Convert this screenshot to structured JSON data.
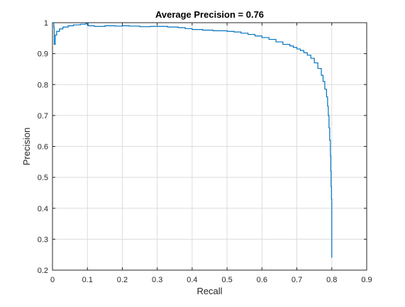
{
  "chart_data": {
    "type": "line",
    "title": "Average Precision = 0.76",
    "xlabel": "Recall",
    "ylabel": "Precision",
    "xlim": [
      0,
      0.9
    ],
    "ylim": [
      0.2,
      1
    ],
    "grid": true,
    "x_ticks": [
      0,
      0.1,
      0.2,
      0.3,
      0.4,
      0.5,
      0.6,
      0.7,
      0.8,
      0.9
    ],
    "x_tick_labels": [
      "0",
      "0.1",
      "0.2",
      "0.3",
      "0.4",
      "0.5",
      "0.6",
      "0.7",
      "0.8",
      "0.9"
    ],
    "y_ticks": [
      0.2,
      0.3,
      0.4,
      0.5,
      0.6,
      0.7,
      0.8,
      0.9,
      1
    ],
    "y_tick_labels": [
      "0.2",
      "0.3",
      "0.4",
      "0.5",
      "0.6",
      "0.7",
      "0.8",
      "0.9",
      "1"
    ],
    "series": [
      {
        "color": "#0072BD",
        "step": true,
        "points": [
          [
            0.0,
            1.0
          ],
          [
            0.002,
            1.0
          ],
          [
            0.004,
            0.985
          ],
          [
            0.005,
            0.93
          ],
          [
            0.008,
            0.96
          ],
          [
            0.012,
            0.972
          ],
          [
            0.02,
            0.98
          ],
          [
            0.03,
            0.986
          ],
          [
            0.045,
            0.99
          ],
          [
            0.06,
            0.993
          ],
          [
            0.08,
            0.995
          ],
          [
            0.095,
            0.997
          ],
          [
            0.1,
            0.998
          ],
          [
            0.102,
            0.99
          ],
          [
            0.12,
            0.988
          ],
          [
            0.15,
            0.99
          ],
          [
            0.18,
            0.989
          ],
          [
            0.2,
            0.99
          ],
          [
            0.22,
            0.989
          ],
          [
            0.25,
            0.987
          ],
          [
            0.28,
            0.988
          ],
          [
            0.3,
            0.988
          ],
          [
            0.33,
            0.986
          ],
          [
            0.36,
            0.984
          ],
          [
            0.38,
            0.981
          ],
          [
            0.4,
            0.978
          ],
          [
            0.43,
            0.976
          ],
          [
            0.46,
            0.974
          ],
          [
            0.5,
            0.972
          ],
          [
            0.52,
            0.97
          ],
          [
            0.54,
            0.966
          ],
          [
            0.56,
            0.962
          ],
          [
            0.58,
            0.957
          ],
          [
            0.6,
            0.952
          ],
          [
            0.62,
            0.946
          ],
          [
            0.64,
            0.938
          ],
          [
            0.66,
            0.93
          ],
          [
            0.68,
            0.925
          ],
          [
            0.69,
            0.92
          ],
          [
            0.7,
            0.915
          ],
          [
            0.71,
            0.91
          ],
          [
            0.72,
            0.903
          ],
          [
            0.73,
            0.895
          ],
          [
            0.74,
            0.885
          ],
          [
            0.75,
            0.87
          ],
          [
            0.76,
            0.852
          ],
          [
            0.77,
            0.83
          ],
          [
            0.775,
            0.81
          ],
          [
            0.78,
            0.785
          ],
          [
            0.785,
            0.76
          ],
          [
            0.788,
            0.73
          ],
          [
            0.79,
            0.7
          ],
          [
            0.792,
            0.66
          ],
          [
            0.794,
            0.62
          ],
          [
            0.796,
            0.57
          ],
          [
            0.797,
            0.52
          ],
          [
            0.798,
            0.47
          ],
          [
            0.799,
            0.43
          ],
          [
            0.8,
            0.4
          ],
          [
            0.8,
            0.32
          ],
          [
            0.8,
            0.24
          ]
        ]
      }
    ]
  }
}
